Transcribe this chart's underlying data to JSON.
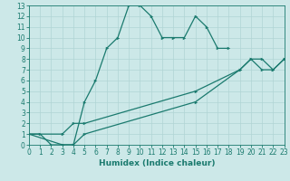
{
  "xlabel": "Humidex (Indice chaleur)",
  "ylabel": "",
  "bg_color": "#cce8e8",
  "line_color": "#1a7a6e",
  "xlim": [
    0,
    23
  ],
  "ylim": [
    0,
    13
  ],
  "xticks": [
    0,
    1,
    2,
    3,
    4,
    5,
    6,
    7,
    8,
    9,
    10,
    11,
    12,
    13,
    14,
    15,
    16,
    17,
    18,
    19,
    20,
    21,
    22,
    23
  ],
  "yticks": [
    0,
    1,
    2,
    3,
    4,
    5,
    6,
    7,
    8,
    9,
    10,
    11,
    12,
    13
  ],
  "line1_x": [
    0,
    1,
    2,
    3,
    4,
    5,
    6,
    7,
    8,
    9,
    10,
    11,
    12,
    13,
    14,
    15,
    16,
    17,
    18
  ],
  "line1_y": [
    1,
    1,
    0,
    0,
    0,
    4,
    6,
    9,
    10,
    13,
    13,
    12,
    10,
    10,
    10,
    12,
    11,
    9,
    9
  ],
  "line2_x": [
    0,
    3,
    4,
    5,
    15,
    19,
    20,
    21,
    22,
    23
  ],
  "line2_y": [
    1,
    1,
    2,
    2,
    5,
    7,
    8,
    8,
    7,
    8
  ],
  "line3_x": [
    0,
    3,
    4,
    5,
    15,
    19,
    20,
    21,
    22,
    23
  ],
  "line3_y": [
    1,
    0,
    0,
    1,
    4,
    7,
    8,
    7,
    7,
    8
  ],
  "grid_color": "#b0d4d4",
  "tick_fontsize": 5.5,
  "xlabel_fontsize": 6.5,
  "marker_size": 2.5,
  "line_width": 0.9
}
